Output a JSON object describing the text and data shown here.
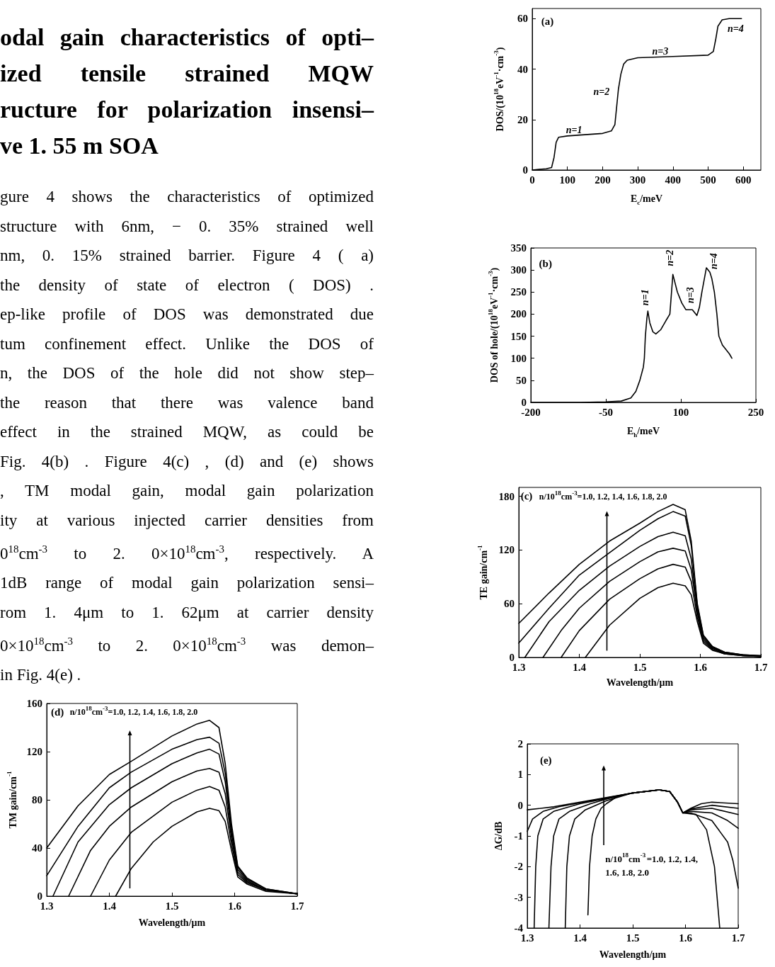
{
  "chart_data": [
    {
      "type": "other",
      "title": "odal gain characteristics of opti–\nized tensile strained MQW\nructure for polarization insensi–\nve 1. 55 m SOA",
      "annotations": [
        "gure 4 shows the characteristics of optimized",
        "structure with 6nm, − 0. 35% strained well",
        "nm, 0. 15% strained barrier. Figure 4 ( a)",
        "the density of state of electron ( DOS) .",
        "ep-like profile of DOS was demonstrated due",
        "tum confinement effect. Unlike the DOS of",
        "n, the DOS of the hole did not show step–",
        "the reason that there was valence band",
        "effect in the strained MQW, as could be",
        "Fig. 4(b) . Figure 4(c) , (d) and (e) shows",
        ", TM modal gain, modal gain polarization",
        "ity at various injected carrier densities from",
        "0$^{18}$cm$^{-3}$ to 2. 0×10$^{18}$cm$^{-3}$, respectively. A",
        "1dB range of modal gain polarization sensi–",
        "rom 1. 4μm to 1. 62μm at carrier density",
        "0×10$^{18}$cm$^{-3}$ to 2. 0×10$^{18}$cm$^{-3}$ was demon–",
        "in Fig. 4(e) ."
      ]
    },
    {
      "type": "line",
      "xlabel": "E$_{c}$/meV",
      "ylabel": "DOS/(10$^{18}$eV$^{-1}$·cm$^{-3}$)",
      "xlim": [
        0,
        650
      ],
      "xticks": [
        0,
        100,
        200,
        300,
        400,
        500,
        600
      ],
      "ylim": [
        0,
        64
      ],
      "yticks": [
        0,
        20,
        40,
        60
      ],
      "marker": "none",
      "line_style": "solid",
      "annotations": [
        "(a)",
        "n=1",
        "n=2",
        "n=3",
        "n=4"
      ],
      "series": [
        {
          "color": "#000000",
          "x": [
            0,
            40,
            55,
            62,
            68,
            75,
            100,
            150,
            200,
            225,
            235,
            240,
            245,
            252,
            260,
            270,
            300,
            400,
            500,
            515,
            522,
            528,
            540,
            560,
            595
          ],
          "values": [
            0,
            0.5,
            1,
            5,
            11,
            13,
            13.5,
            14,
            14.5,
            15.5,
            18,
            25,
            32,
            38,
            42,
            43.5,
            44.5,
            45,
            45.5,
            47,
            52,
            57,
            59.5,
            60,
            60
          ]
        }
      ]
    },
    {
      "type": "line",
      "xlabel": "E$_{h}$/meV",
      "ylabel": "DOS of hole/(10$^{18}$eV$^{-1}$·cm$^{-3}$)",
      "xlim": [
        -200,
        250
      ],
      "xticks": [
        -200,
        -50,
        100,
        250
      ],
      "ylim": [
        0,
        350
      ],
      "yticks": [
        0,
        50,
        100,
        150,
        200,
        250,
        300,
        350
      ],
      "marker": "none",
      "line_style": "solid",
      "annotations": [
        "(b)",
        "n=1",
        "n=2",
        "n=3",
        "n=4"
      ],
      "series": [
        {
          "color": "#000000",
          "x": [
            -200,
            -100,
            -50,
            -19,
            0,
            10,
            18,
            25,
            27,
            29,
            32,
            34,
            38,
            44,
            50,
            60,
            70,
            78,
            84,
            93,
            102,
            110,
            123,
            132,
            137,
            142,
            151,
            158,
            162,
            167,
            172,
            176,
            183,
            190,
            197,
            202
          ],
          "values": [
            0,
            0,
            1,
            3,
            10,
            25,
            50,
            80,
            100,
            150,
            190,
            207,
            180,
            160,
            155,
            165,
            185,
            200,
            290,
            250,
            225,
            210,
            210,
            197,
            215,
            250,
            305,
            295,
            280,
            250,
            200,
            150,
            130,
            120,
            110,
            100
          ]
        }
      ]
    },
    {
      "type": "line",
      "xlabel": "Wavelength/μm",
      "ylabel": "TE gain/cm$^{-1}$",
      "xlim": [
        1.3,
        1.7
      ],
      "xticks": [
        1.3,
        1.4,
        1.5,
        1.6,
        1.7
      ],
      "ylim": [
        0,
        190
      ],
      "yticks": [
        0,
        60,
        120,
        180
      ],
      "marker": "none",
      "line_style": "solid",
      "annotations": [
        "(c)",
        "n/10$^{18}$cm$^{-3}$=1.0, 1.2, 1.4, 1.6, 1.8, 2.0"
      ],
      "series": [
        {
          "color": "#000000",
          "x": [
            1.3,
            1.35,
            1.4,
            1.45,
            1.5,
            1.53,
            1.555,
            1.575,
            1.585,
            1.595,
            1.605,
            1.62,
            1.64,
            1.67,
            1.7
          ],
          "values": [
            38,
            72,
            104,
            130,
            150,
            163,
            171,
            165,
            130,
            60,
            25,
            12,
            6,
            3,
            2
          ]
        },
        {
          "color": "#000000",
          "x": [
            1.3,
            1.35,
            1.4,
            1.45,
            1.5,
            1.53,
            1.555,
            1.575,
            1.585,
            1.595,
            1.605,
            1.62,
            1.64,
            1.67,
            1.7
          ],
          "values": [
            16,
            55,
            92,
            117,
            142,
            155,
            163,
            158,
            125,
            58,
            24,
            12,
            6,
            3,
            2
          ]
        },
        {
          "color": "#000000",
          "x": [
            1.31,
            1.35,
            1.4,
            1.45,
            1.5,
            1.53,
            1.555,
            1.575,
            1.585,
            1.595,
            1.605,
            1.62,
            1.64,
            1.67,
            1.7
          ],
          "values": [
            0,
            40,
            75,
            102,
            124,
            135,
            140,
            136,
            110,
            54,
            22,
            11,
            5,
            3,
            1
          ]
        },
        {
          "color": "#000000",
          "x": [
            1.34,
            1.37,
            1.4,
            1.45,
            1.5,
            1.53,
            1.555,
            1.575,
            1.585,
            1.595,
            1.605,
            1.62,
            1.64,
            1.67,
            1.7
          ],
          "values": [
            0,
            30,
            55,
            85,
            107,
            118,
            122,
            119,
            98,
            50,
            20,
            10,
            5,
            2,
            1
          ]
        },
        {
          "color": "#000000",
          "x": [
            1.37,
            1.4,
            1.45,
            1.5,
            1.53,
            1.555,
            1.575,
            1.585,
            1.595,
            1.605,
            1.62,
            1.64,
            1.67,
            1.7
          ],
          "values": [
            0,
            30,
            65,
            88,
            99,
            104,
            101,
            85,
            45,
            18,
            9,
            4,
            2,
            1
          ]
        },
        {
          "color": "#000000",
          "x": [
            1.41,
            1.43,
            1.45,
            1.5,
            1.53,
            1.555,
            1.575,
            1.585,
            1.595,
            1.605,
            1.62,
            1.64,
            1.67,
            1.7
          ],
          "values": [
            0,
            18,
            36,
            66,
            78,
            83,
            80,
            70,
            40,
            16,
            8,
            4,
            2,
            1
          ]
        }
      ]
    },
    {
      "type": "line",
      "xlabel": "Wavelength/μm",
      "ylabel": "TM gain/cm$^{-1}$",
      "xlim": [
        1.3,
        1.7
      ],
      "xticks": [
        1.3,
        1.4,
        1.5,
        1.6,
        1.7
      ],
      "ylim": [
        0,
        160
      ],
      "yticks": [
        0,
        40,
        80,
        120,
        160
      ],
      "marker": "none",
      "line_style": "solid",
      "annotations": [
        "(d)",
        "n/10$^{18}$cm$^{-3}$=1.0, 1.2, 1.4, 1.6, 1.8, 2.0"
      ],
      "series": [
        {
          "color": "#000000",
          "x": [
            1.3,
            1.35,
            1.4,
            1.435,
            1.5,
            1.54,
            1.56,
            1.575,
            1.585,
            1.595,
            1.605,
            1.62,
            1.65,
            1.7
          ],
          "values": [
            40,
            75,
            101,
            112,
            133,
            143,
            146,
            140,
            110,
            60,
            25,
            15,
            6,
            2
          ]
        },
        {
          "color": "#000000",
          "x": [
            1.3,
            1.35,
            1.4,
            1.435,
            1.5,
            1.54,
            1.56,
            1.575,
            1.585,
            1.595,
            1.605,
            1.62,
            1.65,
            1.7
          ],
          "values": [
            17,
            58,
            90,
            103,
            122,
            130,
            132,
            127,
            102,
            56,
            24,
            14,
            6,
            2
          ]
        },
        {
          "color": "#000000",
          "x": [
            1.31,
            1.35,
            1.4,
            1.435,
            1.5,
            1.54,
            1.56,
            1.575,
            1.585,
            1.595,
            1.605,
            1.62,
            1.65,
            1.7
          ],
          "values": [
            0,
            45,
            76,
            90,
            110,
            119,
            122,
            118,
            95,
            52,
            22,
            13,
            5,
            2
          ]
        },
        {
          "color": "#000000",
          "x": [
            1.335,
            1.37,
            1.4,
            1.435,
            1.5,
            1.54,
            1.56,
            1.575,
            1.585,
            1.595,
            1.605,
            1.62,
            1.65,
            1.7
          ],
          "values": [
            0,
            38,
            58,
            74,
            95,
            104,
            106,
            103,
            85,
            48,
            20,
            12,
            5,
            2
          ]
        },
        {
          "color": "#000000",
          "x": [
            1.37,
            1.4,
            1.435,
            1.5,
            1.54,
            1.56,
            1.575,
            1.585,
            1.595,
            1.605,
            1.62,
            1.65,
            1.7
          ],
          "values": [
            0,
            30,
            53,
            78,
            88,
            91,
            88,
            74,
            43,
            18,
            11,
            5,
            2
          ]
        },
        {
          "color": "#000000",
          "x": [
            1.41,
            1.435,
            1.47,
            1.5,
            1.54,
            1.56,
            1.575,
            1.585,
            1.595,
            1.605,
            1.62,
            1.65,
            1.7
          ],
          "values": [
            0,
            23,
            45,
            58,
            70,
            73,
            71,
            62,
            38,
            16,
            10,
            4,
            2
          ]
        }
      ]
    },
    {
      "type": "line",
      "xlabel": "Wavelength/μm",
      "ylabel": "ΔG/dB",
      "xlim": [
        1.3,
        1.7
      ],
      "xticks": [
        1.3,
        1.4,
        1.5,
        1.6,
        1.7
      ],
      "ylim": [
        -4,
        2
      ],
      "yticks": [
        -4,
        -3,
        -2,
        -1,
        0,
        1,
        2
      ],
      "marker": "none",
      "line_style": "solid",
      "annotations": [
        "(e)",
        "n/10$^{18}$cm$^{-3}$=1.0, 1.2, 1.4, 1.6, 1.8, 2.0"
      ],
      "series": [
        {
          "color": "#000000",
          "x": [
            1.3,
            1.35,
            1.4,
            1.45,
            1.5,
            1.55,
            1.57,
            1.585,
            1.595,
            1.61,
            1.63,
            1.65,
            1.7
          ],
          "values": [
            -0.15,
            -0.05,
            0.1,
            0.25,
            0.4,
            0.5,
            0.45,
            0.1,
            -0.25,
            -0.1,
            0.05,
            0.1,
            0.05
          ]
        },
        {
          "color": "#000000",
          "x": [
            1.3,
            1.31,
            1.33,
            1.36,
            1.4,
            1.45,
            1.5,
            1.55,
            1.57,
            1.585,
            1.595,
            1.61,
            1.65,
            1.7
          ],
          "values": [
            -0.85,
            -0.45,
            -0.2,
            -0.05,
            0.08,
            0.24,
            0.4,
            0.5,
            0.45,
            0.1,
            -0.25,
            -0.12,
            0,
            -0.1
          ]
        },
        {
          "color": "#000000",
          "x": [
            1.313,
            1.316,
            1.32,
            1.33,
            1.35,
            1.4,
            1.45,
            1.5,
            1.55,
            1.57,
            1.585,
            1.595,
            1.61,
            1.65,
            1.7
          ],
          "values": [
            -4,
            -2,
            -1,
            -0.45,
            -0.2,
            0.05,
            0.22,
            0.4,
            0.5,
            0.45,
            0.1,
            -0.25,
            -0.15,
            -0.1,
            -0.3
          ]
        },
        {
          "color": "#000000",
          "x": [
            1.341,
            1.345,
            1.35,
            1.36,
            1.38,
            1.42,
            1.45,
            1.5,
            1.55,
            1.57,
            1.585,
            1.595,
            1.61,
            1.65,
            1.68,
            1.7
          ],
          "values": [
            -4,
            -2,
            -1,
            -0.45,
            -0.2,
            0.05,
            0.2,
            0.4,
            0.5,
            0.45,
            0.1,
            -0.25,
            -0.2,
            -0.25,
            -0.5,
            -0.75
          ]
        },
        {
          "color": "#000000",
          "x": [
            1.372,
            1.375,
            1.38,
            1.39,
            1.41,
            1.45,
            1.5,
            1.55,
            1.57,
            1.585,
            1.595,
            1.61,
            1.65,
            1.68,
            1.69,
            1.7
          ],
          "values": [
            -4,
            -2,
            -1,
            -0.45,
            -0.15,
            0.15,
            0.4,
            0.5,
            0.45,
            0.1,
            -0.25,
            -0.25,
            -0.5,
            -1.2,
            -1.8,
            -2.7
          ]
        },
        {
          "color": "#000000",
          "x": [
            1.415,
            1.418,
            1.423,
            1.43,
            1.44,
            1.45,
            1.47,
            1.5,
            1.55,
            1.57,
            1.585,
            1.595,
            1.62,
            1.64,
            1.655,
            1.665
          ],
          "values": [
            -3.57,
            -2,
            -1,
            -0.45,
            -0.1,
            0.05,
            0.28,
            0.4,
            0.5,
            0.45,
            0.1,
            -0.25,
            -0.3,
            -0.8,
            -2,
            -4
          ]
        }
      ]
    }
  ]
}
